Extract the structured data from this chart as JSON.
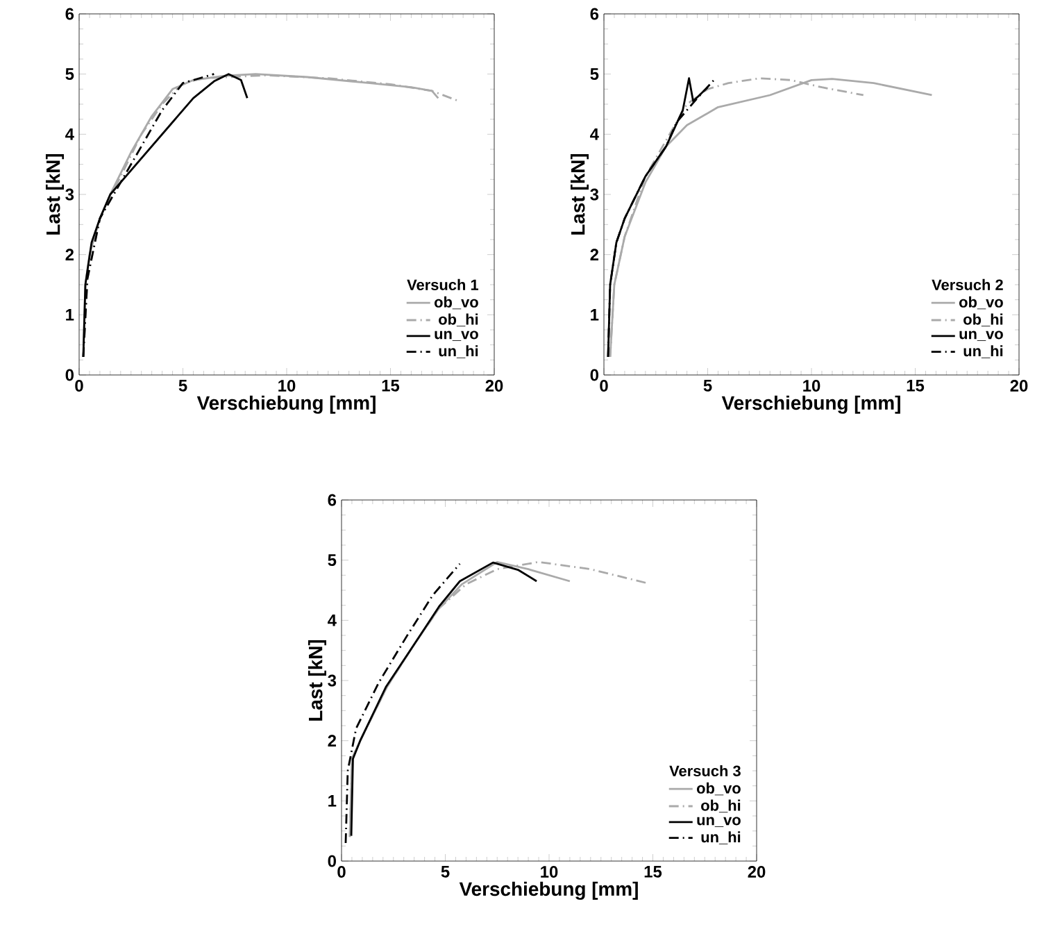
{
  "chart_data": [
    {
      "type": "line",
      "legend_title": "Versuch 1",
      "xlabel": "Verschiebung [mm]",
      "ylabel": "Last [kN]",
      "xlim": [
        0,
        20
      ],
      "ylim": [
        0,
        6
      ],
      "xticks": [
        0,
        5,
        10,
        15,
        20
      ],
      "yticks": [
        0,
        1,
        2,
        3,
        4,
        5,
        6
      ],
      "legend": "bottom right",
      "series": [
        {
          "name": "ob_vo",
          "color": "#aaaaaa",
          "line_style": "solid",
          "x": [
            0.2,
            0.3,
            0.5,
            1,
            1.5,
            2.5,
            3.5,
            4.5,
            5.5,
            7,
            8.5,
            11,
            14,
            16,
            17,
            17.3
          ],
          "values": [
            0.3,
            1.5,
            2.0,
            2.6,
            3.0,
            3.7,
            4.3,
            4.75,
            4.9,
            4.97,
            5.0,
            4.95,
            4.85,
            4.78,
            4.72,
            4.6
          ]
        },
        {
          "name": "ob_hi",
          "color": "#aaaaaa",
          "line_style": "dashdot",
          "x": [
            0.2,
            0.4,
            1,
            2,
            3,
            4,
            5,
            6,
            9,
            12,
            15,
            17,
            18.3
          ],
          "values": [
            0.3,
            1.6,
            2.6,
            3.3,
            4.0,
            4.5,
            4.85,
            4.93,
            4.98,
            4.93,
            4.83,
            4.72,
            4.55
          ]
        },
        {
          "name": "un_vo",
          "color": "#000000",
          "line_style": "solid",
          "x": [
            0.2,
            0.3,
            0.6,
            1,
            1.5,
            3,
            4.5,
            5.5,
            6.5,
            7.2,
            7.8,
            8.1
          ],
          "values": [
            0.3,
            1.5,
            2.2,
            2.6,
            3.0,
            3.6,
            4.2,
            4.6,
            4.88,
            5.0,
            4.9,
            4.6
          ]
        },
        {
          "name": "un_hi",
          "color": "#000000",
          "line_style": "dashdot",
          "x": [
            0.2,
            0.4,
            1,
            2,
            3,
            4,
            5,
            6.5
          ],
          "values": [
            0.3,
            1.6,
            2.6,
            3.2,
            3.8,
            4.4,
            4.85,
            5.0
          ]
        }
      ]
    },
    {
      "type": "line",
      "legend_title": "Versuch 2",
      "xlabel": "Verschiebung [mm]",
      "ylabel": "Last [kN]",
      "xlim": [
        0,
        20
      ],
      "ylim": [
        0,
        6
      ],
      "xticks": [
        0,
        5,
        10,
        15,
        20
      ],
      "yticks": [
        0,
        1,
        2,
        3,
        4,
        5,
        6
      ],
      "legend": "bottom right",
      "series": [
        {
          "name": "ob_vo",
          "color": "#aaaaaa",
          "line_style": "solid",
          "x": [
            0.3,
            0.5,
            1,
            2,
            3,
            4,
            5.5,
            8,
            10,
            11,
            13,
            15.8
          ],
          "values": [
            0.3,
            1.5,
            2.3,
            3.2,
            3.8,
            4.15,
            4.45,
            4.65,
            4.9,
            4.92,
            4.85,
            4.65
          ]
        },
        {
          "name": "ob_hi",
          "color": "#aaaaaa",
          "line_style": "dashdot",
          "x": [
            0.3,
            0.5,
            1,
            2,
            3,
            4,
            5,
            6,
            7.5,
            9,
            10.5,
            12.5
          ],
          "values": [
            0.3,
            1.5,
            2.3,
            3.3,
            3.9,
            4.5,
            4.75,
            4.85,
            4.93,
            4.9,
            4.78,
            4.65
          ]
        },
        {
          "name": "un_vo",
          "color": "#000000",
          "line_style": "solid",
          "x": [
            0.2,
            0.3,
            0.6,
            1,
            2,
            3,
            3.8,
            4.1,
            4.3,
            5
          ],
          "values": [
            0.3,
            1.5,
            2.2,
            2.6,
            3.3,
            3.8,
            4.4,
            4.93,
            4.55,
            4.78
          ]
        },
        {
          "name": "un_hi",
          "color": "#000000",
          "line_style": "dashdot",
          "x": [
            0.2,
            0.3,
            0.6,
            1,
            2,
            3,
            3.5,
            4.5,
            5.3
          ],
          "values": [
            0.3,
            1.5,
            2.2,
            2.6,
            3.3,
            3.8,
            4.2,
            4.6,
            4.9
          ]
        }
      ]
    },
    {
      "type": "line",
      "legend_title": "Versuch 3",
      "xlabel": "Verschiebung [mm]",
      "ylabel": "Last [kN]",
      "xlim": [
        0,
        20
      ],
      "ylim": [
        0,
        6
      ],
      "xticks": [
        0,
        5,
        10,
        15,
        20
      ],
      "yticks": [
        0,
        1,
        2,
        3,
        4,
        5,
        6
      ],
      "legend": "bottom right",
      "series": [
        {
          "name": "ob_vo",
          "color": "#aaaaaa",
          "line_style": "solid",
          "x": [
            0.4,
            0.5,
            0.9,
            2.2,
            3.5,
            4.7,
            5.8,
            7.5,
            9,
            11
          ],
          "values": [
            0.4,
            1.7,
            2.0,
            2.9,
            3.6,
            4.2,
            4.6,
            4.97,
            4.85,
            4.65
          ]
        },
        {
          "name": "ob_hi",
          "color": "#aaaaaa",
          "line_style": "dashdot",
          "x": [
            0.4,
            0.5,
            0.9,
            2.2,
            3.5,
            4.7,
            6,
            7.5,
            9.5,
            12,
            14.7
          ],
          "values": [
            0.4,
            1.7,
            2.0,
            2.9,
            3.6,
            4.2,
            4.6,
            4.85,
            4.97,
            4.85,
            4.62
          ]
        },
        {
          "name": "un_vo",
          "color": "#000000",
          "line_style": "solid",
          "x": [
            0.47,
            0.55,
            0.9,
            2.15,
            3.5,
            4.7,
            5.7,
            7.3,
            8.5,
            9.4
          ],
          "values": [
            0.42,
            1.7,
            2.0,
            2.9,
            3.6,
            4.23,
            4.65,
            4.96,
            4.84,
            4.65
          ]
        },
        {
          "name": "un_hi",
          "color": "#000000",
          "line_style": "dashdot",
          "x": [
            0.2,
            0.3,
            0.7,
            1.8,
            3.15,
            4.4,
            5.7
          ],
          "values": [
            0.3,
            1.5,
            2.2,
            2.97,
            3.74,
            4.42,
            4.94
          ]
        }
      ]
    }
  ]
}
